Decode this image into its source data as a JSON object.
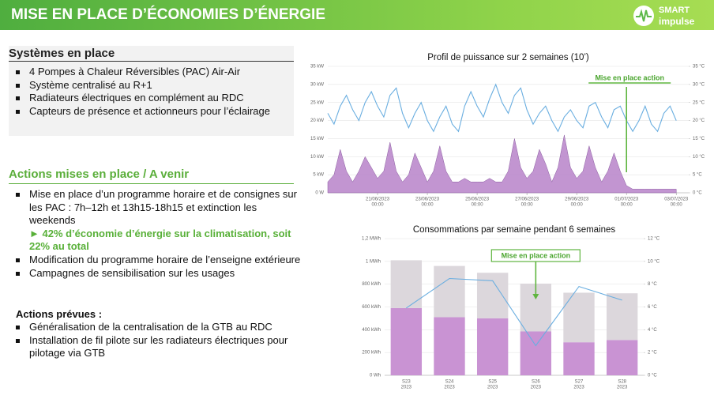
{
  "header": {
    "title": "MISE EN PLACE D’ÉCONOMIES D’ÉNERGIE",
    "logo_top": "SMART",
    "logo_bottom": "impulse"
  },
  "systems": {
    "title": "Systèmes en place",
    "items": [
      "4 Pompes à Chaleur Réversibles (PAC) Air-Air",
      "Système centralisé au R+1",
      "Radiateurs électriques en complément au RDC",
      "Capteurs de présence et actionneurs pour l’éclairage"
    ]
  },
  "actions": {
    "title": "Actions mises en place / A venir",
    "items": [
      {
        "text": "Mise en place d’un programme horaire et de consignes sur les PAC : 7h–12h et 13h15-18h15 et extinction les weekends",
        "highlight": "► 42% d’économie d’énergie sur la climatisation, soit 22% au total"
      },
      {
        "text": "Modification du programme horaire de l’enseigne extérieure"
      },
      {
        "text": "Campagnes de sensibilisation sur les usages"
      }
    ],
    "planned_title": "Actions prévues :",
    "planned_items": [
      "Généralisation de la centralisation de la GTB au RDC",
      "Installation de fil pilote sur les radiateurs électriques pour pilotage via GTB"
    ]
  },
  "chart_data": [
    {
      "type": "area",
      "title": "Profil de puissance sur 2 semaines (10’)",
      "grid": true,
      "x": [
        "2023-06-19 00:00",
        "2023-06-19 06:00",
        "2023-06-19 12:00",
        "2023-06-19 18:00",
        "2023-06-20 00:00",
        "2023-06-20 06:00",
        "2023-06-20 12:00",
        "2023-06-20 18:00",
        "2023-06-21 00:00",
        "2023-06-21 06:00",
        "2023-06-21 12:00",
        "2023-06-21 18:00",
        "2023-06-22 00:00",
        "2023-06-22 06:00",
        "2023-06-22 12:00",
        "2023-06-22 18:00",
        "2023-06-23 00:00",
        "2023-06-23 06:00",
        "2023-06-23 12:00",
        "2023-06-23 18:00",
        "2023-06-24 00:00",
        "2023-06-24 06:00",
        "2023-06-24 12:00",
        "2023-06-24 18:00",
        "2023-06-25 00:00",
        "2023-06-25 06:00",
        "2023-06-25 12:00",
        "2023-06-25 18:00",
        "2023-06-26 00:00",
        "2023-06-26 06:00",
        "2023-06-26 12:00",
        "2023-06-26 18:00",
        "2023-06-27 00:00",
        "2023-06-27 06:00",
        "2023-06-27 12:00",
        "2023-06-27 18:00",
        "2023-06-28 00:00",
        "2023-06-28 06:00",
        "2023-06-28 12:00",
        "2023-06-28 18:00",
        "2023-06-29 00:00",
        "2023-06-29 06:00",
        "2023-06-29 12:00",
        "2023-06-29 18:00",
        "2023-06-30 00:00",
        "2023-06-30 06:00",
        "2023-06-30 12:00",
        "2023-06-30 18:00",
        "2023-07-01 00:00",
        "2023-07-01 06:00",
        "2023-07-01 12:00",
        "2023-07-01 18:00",
        "2023-07-02 00:00",
        "2023-07-02 06:00",
        "2023-07-02 12:00",
        "2023-07-02 18:00",
        "2023-07-03 00:00"
      ],
      "xlim": [
        "2023-06-19 00:00",
        "2023-07-03 12:00"
      ],
      "xticks": [
        {
          "value": "2023-06-21 00:00",
          "label": "21/06/2023",
          "label2": "00:00"
        },
        {
          "value": "2023-06-23 00:00",
          "label": "23/06/2023",
          "label2": "00:00"
        },
        {
          "value": "2023-06-25 00:00",
          "label": "25/06/2023",
          "label2": "00:00"
        },
        {
          "value": "2023-06-27 00:00",
          "label": "27/06/2023",
          "label2": "00:00"
        },
        {
          "value": "2023-06-29 00:00",
          "label": "29/06/2023",
          "label2": "00:00"
        },
        {
          "value": "2023-07-01 00:00",
          "label": "01/07/2023",
          "label2": "00:00"
        },
        {
          "value": "2023-07-03 00:00",
          "label": "03/07/2023",
          "label2": "00:00"
        }
      ],
      "ylim": [
        0,
        35
      ],
      "yticks": [
        {
          "value": 0,
          "label": "0 W"
        },
        {
          "value": 5,
          "label": "5 kW"
        },
        {
          "value": 10,
          "label": "10 kW"
        },
        {
          "value": 15,
          "label": "15 kW"
        },
        {
          "value": 20,
          "label": "20 kW"
        },
        {
          "value": 25,
          "label": "25 kW"
        },
        {
          "value": 30,
          "label": "30 kW"
        },
        {
          "value": 35,
          "label": "35 kW"
        }
      ],
      "y2lim": [
        0,
        35
      ],
      "y2ticks": [
        {
          "value": 0,
          "label": "0 °C"
        },
        {
          "value": 5,
          "label": "5 °C"
        },
        {
          "value": 10,
          "label": "10 °C"
        },
        {
          "value": 15,
          "label": "15 °C"
        },
        {
          "value": 20,
          "label": "20 °C"
        },
        {
          "value": 25,
          "label": "25 °C"
        },
        {
          "value": 30,
          "label": "30 °C"
        },
        {
          "value": 35,
          "label": "35 °C"
        }
      ],
      "series": [
        {
          "color": "#b783c9",
          "values": [
            3,
            5,
            12,
            6,
            3,
            6,
            10,
            7,
            4,
            6,
            14,
            6,
            3,
            5,
            11,
            7,
            3,
            6,
            13,
            6,
            3,
            3,
            4,
            3,
            3,
            3,
            4,
            3,
            3,
            6,
            15,
            7,
            4,
            6,
            12,
            8,
            3,
            7,
            16,
            7,
            4,
            6,
            13,
            7,
            3,
            6,
            11,
            6,
            2,
            1,
            1,
            1,
            1,
            1,
            1,
            1,
            1
          ]
        },
        {
          "color": "#6aaee0",
          "axis": "y2",
          "type": "line",
          "values": [
            22,
            19,
            24,
            27,
            23,
            20,
            25,
            28,
            24,
            21,
            27,
            29,
            22,
            18,
            22,
            25,
            20,
            17,
            21,
            24,
            19,
            17,
            24,
            28,
            24,
            21,
            26,
            30,
            25,
            22,
            27,
            29,
            23,
            19,
            22,
            24,
            20,
            17,
            21,
            23,
            20,
            18,
            24,
            25,
            21,
            18,
            23,
            24,
            20,
            17,
            20,
            24,
            19,
            17,
            22,
            24,
            20
          ]
        }
      ],
      "annotation": {
        "text": "Mise en place action",
        "x": "2023-07-01 00:00"
      }
    },
    {
      "type": "bar",
      "title": "Consommations par semaine pendant 6 semaines",
      "grid": true,
      "categories": [
        "S23",
        "S24",
        "S25",
        "S26",
        "S27",
        "S28"
      ],
      "category_sublabels": [
        "2023",
        "2023",
        "2023",
        "2023",
        "2023",
        "2023"
      ],
      "ylim": [
        0,
        1200
      ],
      "yticks": [
        {
          "value": 0,
          "label": "0 Wh"
        },
        {
          "value": 200,
          "label": "200 kWh"
        },
        {
          "value": 400,
          "label": "400 kWh"
        },
        {
          "value": 600,
          "label": "600 kWh"
        },
        {
          "value": 800,
          "label": "800 kWh"
        },
        {
          "value": 1000,
          "label": "1 MWh"
        },
        {
          "value": 1200,
          "label": "1,2 MWh"
        }
      ],
      "y2lim": [
        0,
        12
      ],
      "y2ticks": [
        {
          "value": 0,
          "label": "0 °C"
        },
        {
          "value": 2,
          "label": "2 °C"
        },
        {
          "value": 4,
          "label": "4 °C"
        },
        {
          "value": 6,
          "label": "6 °C"
        },
        {
          "value": 8,
          "label": "8 °C"
        },
        {
          "value": 10,
          "label": "10 °C"
        },
        {
          "value": 12,
          "label": "12 °C"
        }
      ],
      "series": [
        {
          "color": "#c993d3",
          "values": [
            590,
            510,
            500,
            385,
            290,
            310
          ]
        },
        {
          "color": "#dcd7dc",
          "values": [
            420,
            450,
            400,
            420,
            435,
            410
          ]
        },
        {
          "color": "#6aaee0",
          "axis": "y2",
          "type": "line",
          "values": [
            5.9,
            8.5,
            8.3,
            2.6,
            7.8,
            6.6
          ]
        }
      ],
      "annotation": {
        "text": "Mise en place action",
        "category": "S26"
      }
    }
  ]
}
